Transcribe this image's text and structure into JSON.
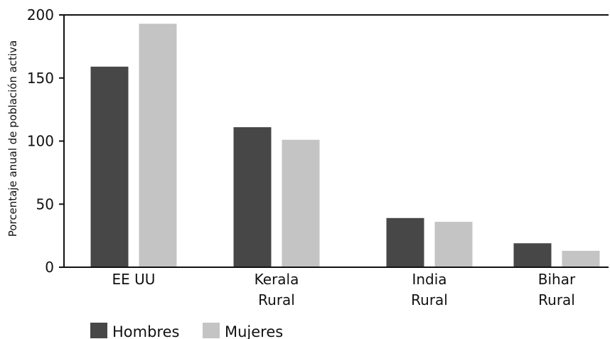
{
  "chart_data": {
    "type": "bar",
    "title": "",
    "xlabel": "",
    "ylabel": "Porcentaje anual de población activa",
    "categories": [
      [
        "EE UU"
      ],
      [
        "Kerala",
        "Rural"
      ],
      [
        "India",
        "Rural"
      ],
      [
        "Bihar",
        "Rural"
      ]
    ],
    "series": [
      {
        "name": "Hombres",
        "color": "#474747",
        "values": [
          159,
          111,
          39,
          19
        ]
      },
      {
        "name": "Mujeres",
        "color": "#c4c4c4",
        "values": [
          193,
          101,
          36,
          13
        ]
      }
    ],
    "yticks": [
      0,
      50,
      100,
      150,
      200
    ],
    "ylim": [
      0,
      200
    ],
    "grid": false,
    "legend_position": "bottom-left"
  }
}
